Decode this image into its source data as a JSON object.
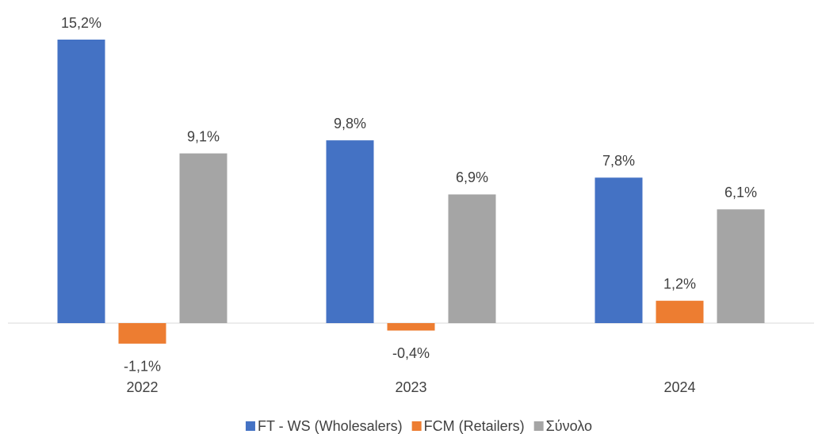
{
  "chart_data": {
    "type": "bar",
    "categories": [
      "2022",
      "2023",
      "2024"
    ],
    "series": [
      {
        "name": "FT - WS (Wholesalers)",
        "color": "#4472c4",
        "values": [
          15.2,
          9.8,
          7.8
        ],
        "value_labels": [
          "15,2%",
          "9,8%",
          "7,8%"
        ]
      },
      {
        "name": "FCM (Retailers)",
        "color": "#ed7d31",
        "values": [
          -1.1,
          -0.4,
          1.2
        ],
        "value_labels": [
          "-1,1%",
          "-0,4%",
          "1,2%"
        ]
      },
      {
        "name": "Σύνολο",
        "color": "#a5a5a5",
        "values": [
          9.1,
          6.9,
          6.1
        ],
        "value_labels": [
          "9,1%",
          "6,9%",
          "6,1%"
        ]
      }
    ],
    "legend": "bottom"
  }
}
